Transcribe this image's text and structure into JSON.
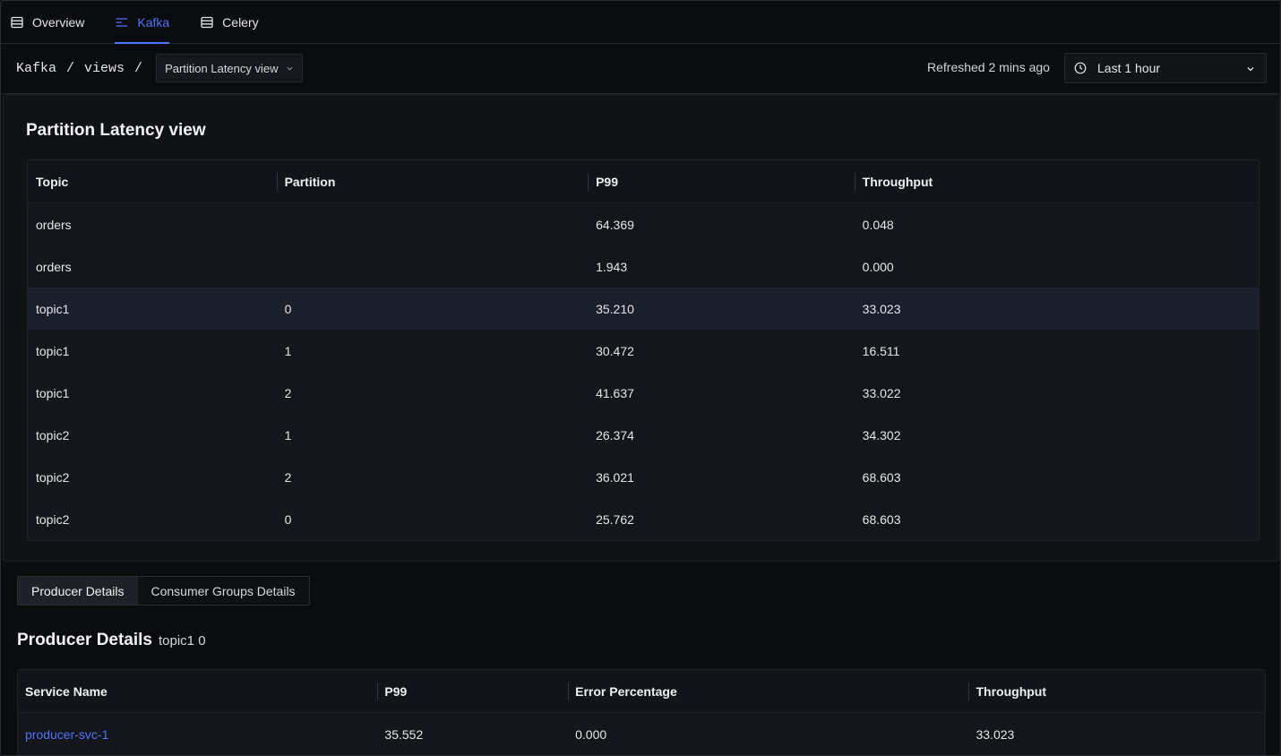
{
  "topnav": {
    "tabs": [
      {
        "label": "Overview",
        "icon": "table-icon",
        "active": false
      },
      {
        "label": "Kafka",
        "icon": "lines-icon",
        "active": true
      },
      {
        "label": "Celery",
        "icon": "table-icon",
        "active": false
      }
    ]
  },
  "breadcrumb": {
    "root": "Kafka",
    "sep": "/",
    "views": "views",
    "current_view": "Partition Latency view"
  },
  "refresh": {
    "text": "Refreshed 2 mins ago"
  },
  "time_range": {
    "value": "Last 1 hour"
  },
  "colors": {
    "accent": "#4e74f8",
    "background": "#0b0c0e",
    "panel": "#101216",
    "selected_row": "#1b1f2c"
  },
  "partition_table": {
    "title": "Partition Latency view",
    "columns": [
      "Topic",
      "Partition",
      "P99",
      "Throughput"
    ],
    "rows": [
      {
        "topic": "orders",
        "partition": "",
        "p99": "64.369",
        "throughput": "0.048",
        "selected": false
      },
      {
        "topic": "orders",
        "partition": "",
        "p99": "1.943",
        "throughput": "0.000",
        "selected": false
      },
      {
        "topic": "topic1",
        "partition": "0",
        "p99": "35.210",
        "throughput": "33.023",
        "selected": true
      },
      {
        "topic": "topic1",
        "partition": "1",
        "p99": "30.472",
        "throughput": "16.511",
        "selected": false
      },
      {
        "topic": "topic1",
        "partition": "2",
        "p99": "41.637",
        "throughput": "33.022",
        "selected": false
      },
      {
        "topic": "topic2",
        "partition": "1",
        "p99": "26.374",
        "throughput": "34.302",
        "selected": false
      },
      {
        "topic": "topic2",
        "partition": "2",
        "p99": "36.021",
        "throughput": "68.603",
        "selected": false
      },
      {
        "topic": "topic2",
        "partition": "0",
        "p99": "25.762",
        "throughput": "68.603",
        "selected": false
      }
    ]
  },
  "detail_tabs": [
    {
      "label": "Producer Details",
      "active": true
    },
    {
      "label": "Consumer Groups Details",
      "active": false
    }
  ],
  "producer_details": {
    "title": "Producer Details",
    "subtitle": "topic1 0",
    "columns": [
      "Service Name",
      "P99",
      "Error Percentage",
      "Throughput"
    ],
    "rows": [
      {
        "service": "producer-svc-1",
        "p99": "35.552",
        "error_pct": "0.000",
        "throughput": "33.023"
      }
    ]
  }
}
